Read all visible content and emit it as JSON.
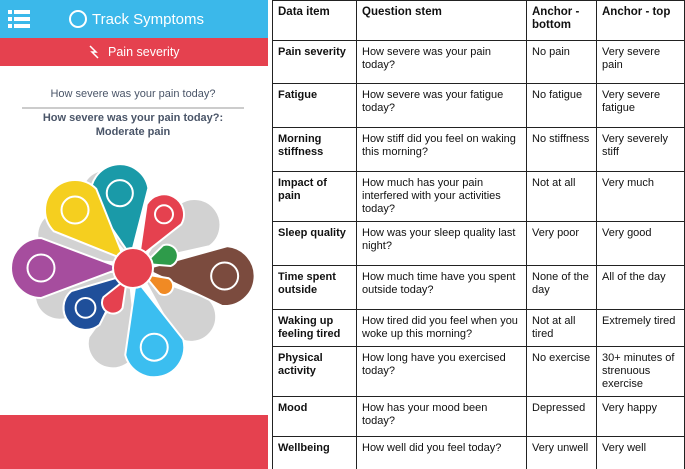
{
  "app": {
    "title": "Track Symptoms",
    "section": "Pain severity",
    "question": "How severe was your pain today?",
    "answer_prompt": "How severe was your pain today?:",
    "answer": "Moderate pain"
  },
  "table": {
    "header": [
      "Data item",
      "Question stem",
      "Anchor - bottom",
      "Anchor - top"
    ],
    "rows": [
      [
        "Pain severity",
        "How severe was your pain today?",
        "No pain",
        "Very severe pain"
      ],
      [
        "Fatigue",
        "How severe was your fatigue today?",
        "No fatigue",
        "Very severe fatigue"
      ],
      [
        "Morning stiffness",
        "How stiff did you feel on waking this morning?",
        "No stiffness",
        "Very severely stiff"
      ],
      [
        "Impact of pain",
        "How much has your pain interfered with your activities today?",
        "Not at all",
        "Very much"
      ],
      [
        "Sleep quality",
        "How was your sleep quality last night?",
        "Very poor",
        "Very good"
      ],
      [
        "Time spent outside",
        "How much time have you spent outside today?",
        "None of the day",
        "All of the day"
      ],
      [
        "Waking up feeling tired",
        "How tired did you feel when you woke up this morning?",
        "Not at all tired",
        "Extremely tired"
      ],
      [
        "Physical activity",
        "How long have you exercised today?",
        "No exercise",
        "30+ minutes of strenuous exercise"
      ],
      [
        "Mood",
        "How has your mood been today?",
        "Depressed",
        "Very happy"
      ],
      [
        "Wellbeing",
        "How well did you feel today?",
        "Very unwell",
        "Very well"
      ]
    ]
  }
}
